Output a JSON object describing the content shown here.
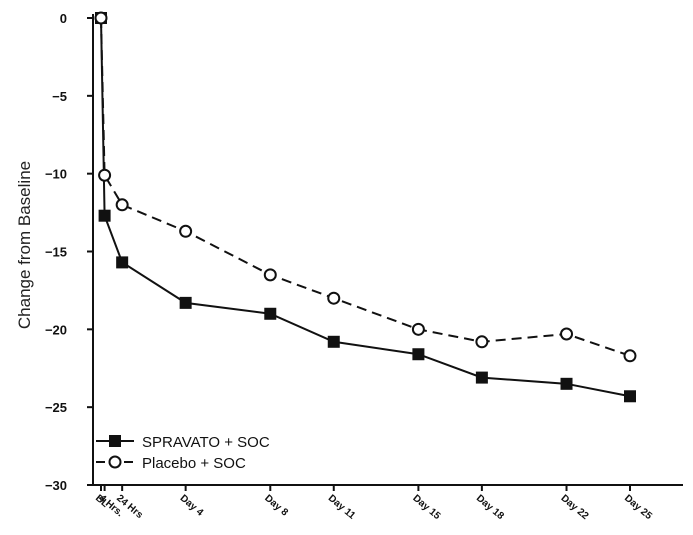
{
  "chart_data": {
    "type": "line",
    "ylabel": "Change from Baseline",
    "ylim": [
      -30,
      0
    ],
    "yticks": [
      0,
      -5,
      -10,
      -15,
      -20,
      -25,
      -30
    ],
    "x_ticks": [
      {
        "label": "BL",
        "day": 0
      },
      {
        "label": "4 Hrs.",
        "day": 0.17
      },
      {
        "label": "24 Hrs",
        "day": 1
      },
      {
        "label": "Day 4",
        "day": 4
      },
      {
        "label": "Day 8",
        "day": 8
      },
      {
        "label": "Day 11",
        "day": 11
      },
      {
        "label": "Day 15",
        "day": 15
      },
      {
        "label": "Day 18",
        "day": 18
      },
      {
        "label": "Day 22",
        "day": 22
      },
      {
        "label": "Day 25",
        "day": 25
      }
    ],
    "series": [
      {
        "name": "SPRAVATO + SOC",
        "marker": "filled-square",
        "line": "solid",
        "x": [
          0,
          0.17,
          1,
          4,
          8,
          11,
          15,
          18,
          22,
          25
        ],
        "y": [
          0,
          -12.7,
          -15.7,
          -18.3,
          -19.0,
          -20.8,
          -21.6,
          -23.1,
          -23.5,
          -24.3
        ]
      },
      {
        "name": "Placebo + SOC",
        "marker": "open-circle",
        "line": "dashed",
        "x": [
          0,
          0.17,
          1,
          4,
          8,
          11,
          15,
          18,
          22,
          25
        ],
        "y": [
          0,
          -10.1,
          -12.0,
          -13.7,
          -16.5,
          -18.0,
          -20.0,
          -20.8,
          -20.3,
          -21.7
        ]
      }
    ],
    "legend_position": "bottom-left",
    "grid": false
  }
}
